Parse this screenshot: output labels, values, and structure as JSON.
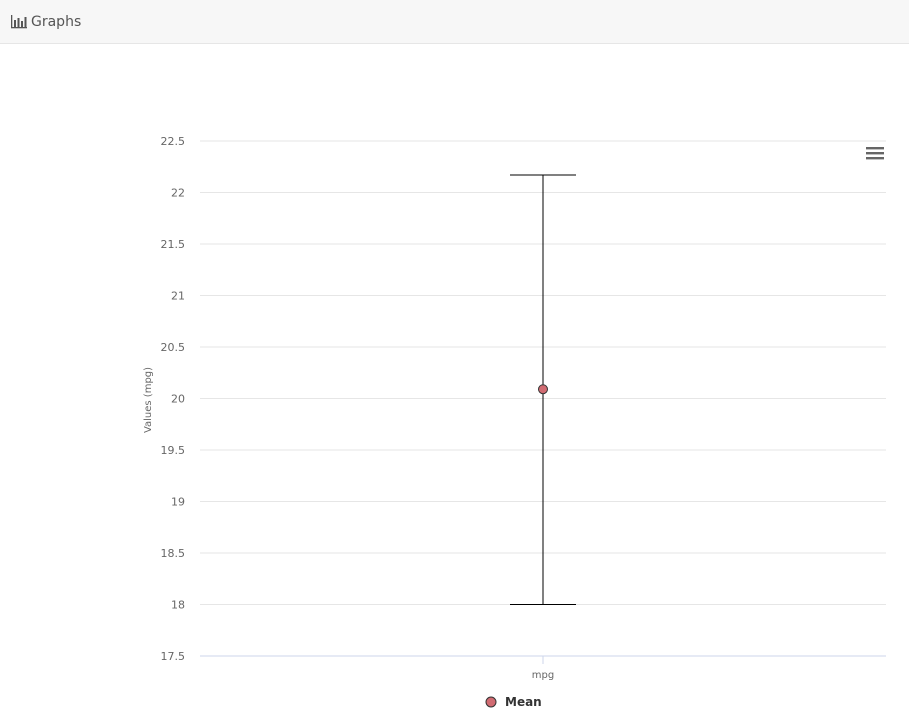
{
  "panel": {
    "title": "Graphs",
    "icon": "bar-chart-icon"
  },
  "menu": {
    "icon": "hamburger-menu-icon"
  },
  "chart_data": {
    "type": "scatter",
    "categories": [
      "mpg"
    ],
    "ylabel": "Values (mpg)",
    "xlabel": "",
    "ylim": [
      17.5,
      22.5
    ],
    "yticks": [
      "17.5",
      "18",
      "18.5",
      "19",
      "19.5",
      "20",
      "20.5",
      "21",
      "21.5",
      "22",
      "22.5"
    ],
    "series": [
      {
        "name": "Mean",
        "type": "scatter",
        "color": "#d16b72",
        "values": [
          20.09
        ]
      },
      {
        "type": "errorbar",
        "color": "#000000",
        "low": [
          18.0
        ],
        "high": [
          22.17
        ]
      }
    ],
    "legend": "bottom-center",
    "grid": true
  }
}
